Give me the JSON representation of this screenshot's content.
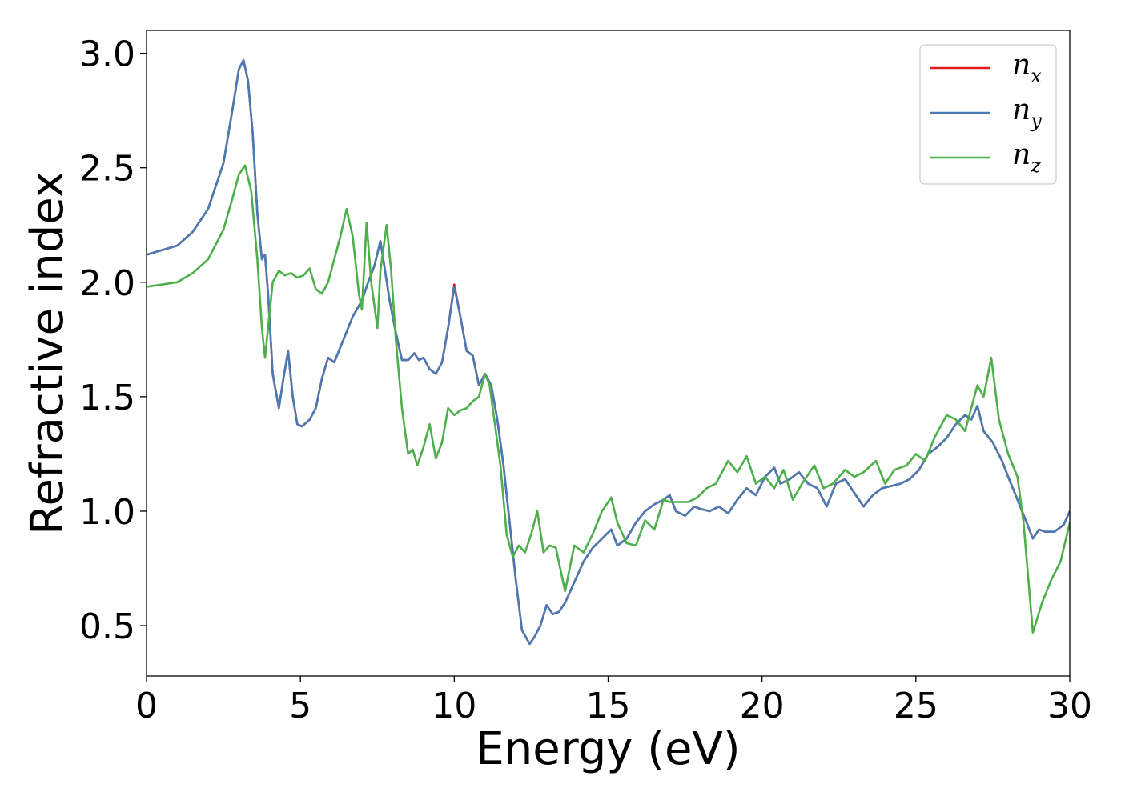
{
  "chart_data": {
    "type": "line",
    "xlabel": "Energy (eV)",
    "ylabel": "Refractive index",
    "xlim": [
      0,
      30
    ],
    "ylim": [
      0.28,
      3.1
    ],
    "xticks": [
      "0",
      "5",
      "10",
      "15",
      "20",
      "25",
      "30"
    ],
    "yticks": [
      "0.5",
      "1.0",
      "1.5",
      "2.0",
      "2.5",
      "3.0"
    ],
    "grid": false,
    "legend_position": "top-right",
    "series": [
      {
        "name": "n_x",
        "label_main": "n",
        "label_sub": "x",
        "color": "#e41a1c",
        "x": [
          0,
          1,
          1.5,
          2,
          2.5,
          2.8,
          3.0,
          3.15,
          3.3,
          3.45,
          3.6,
          3.75,
          3.85,
          3.95,
          4.1,
          4.3,
          4.45,
          4.6,
          4.75,
          4.9,
          5.05,
          5.3,
          5.5,
          5.7,
          5.9,
          6.1,
          6.4,
          6.7,
          7.0,
          7.2,
          7.4,
          7.6,
          7.75,
          7.9,
          8.1,
          8.3,
          8.5,
          8.7,
          8.85,
          9.0,
          9.2,
          9.4,
          9.6,
          9.8,
          10.0,
          10.2,
          10.4,
          10.6,
          10.8,
          11.0,
          11.2,
          11.4,
          11.6,
          11.8,
          12.0,
          12.2,
          12.45,
          12.6,
          12.8,
          13.0,
          13.2,
          13.4,
          13.6,
          13.8,
          14.0,
          14.2,
          14.5,
          14.8,
          15.1,
          15.3,
          15.6,
          15.9,
          16.2,
          16.5,
          16.8,
          17.0,
          17.2,
          17.5,
          17.8,
          18.0,
          18.3,
          18.6,
          18.9,
          19.2,
          19.5,
          19.8,
          20.1,
          20.4,
          20.6,
          20.9,
          21.2,
          21.5,
          21.8,
          22.1,
          22.4,
          22.7,
          23.0,
          23.3,
          23.6,
          23.9,
          24.2,
          24.5,
          24.8,
          25.1,
          25.4,
          25.7,
          26.0,
          26.3,
          26.6,
          26.8,
          27.0,
          27.2,
          27.5,
          27.8,
          28.0,
          28.3,
          28.6,
          28.8,
          29.0,
          29.2,
          29.5,
          29.8,
          30.0
        ],
        "y": [
          2.12,
          2.16,
          2.22,
          2.32,
          2.52,
          2.76,
          2.93,
          2.97,
          2.88,
          2.65,
          2.3,
          2.1,
          2.12,
          1.95,
          1.6,
          1.45,
          1.58,
          1.7,
          1.5,
          1.38,
          1.37,
          1.4,
          1.45,
          1.58,
          1.67,
          1.65,
          1.75,
          1.85,
          1.92,
          2.0,
          2.07,
          2.18,
          2.05,
          1.92,
          1.78,
          1.66,
          1.66,
          1.69,
          1.66,
          1.67,
          1.62,
          1.6,
          1.65,
          1.8,
          1.99,
          1.85,
          1.7,
          1.68,
          1.55,
          1.6,
          1.55,
          1.4,
          1.2,
          0.95,
          0.7,
          0.48,
          0.42,
          0.45,
          0.5,
          0.59,
          0.55,
          0.56,
          0.6,
          0.66,
          0.72,
          0.78,
          0.84,
          0.88,
          0.92,
          0.85,
          0.88,
          0.95,
          1.0,
          1.03,
          1.05,
          1.07,
          1.0,
          0.98,
          1.02,
          1.01,
          1.0,
          1.02,
          0.99,
          1.05,
          1.1,
          1.07,
          1.15,
          1.19,
          1.12,
          1.14,
          1.17,
          1.12,
          1.1,
          1.02,
          1.12,
          1.14,
          1.08,
          1.02,
          1.07,
          1.1,
          1.11,
          1.12,
          1.14,
          1.18,
          1.25,
          1.28,
          1.32,
          1.38,
          1.42,
          1.4,
          1.46,
          1.35,
          1.3,
          1.22,
          1.15,
          1.05,
          0.95,
          0.88,
          0.92,
          0.91,
          0.91,
          0.94,
          1.0
        ]
      },
      {
        "name": "n_y",
        "label_main": "n",
        "label_sub": "y",
        "color": "#4a7ab4",
        "x": [
          0,
          1,
          1.5,
          2,
          2.5,
          2.8,
          3.0,
          3.15,
          3.3,
          3.45,
          3.6,
          3.75,
          3.85,
          3.95,
          4.1,
          4.3,
          4.45,
          4.6,
          4.75,
          4.9,
          5.05,
          5.3,
          5.5,
          5.7,
          5.9,
          6.1,
          6.4,
          6.7,
          7.0,
          7.2,
          7.4,
          7.6,
          7.75,
          7.9,
          8.1,
          8.3,
          8.5,
          8.7,
          8.85,
          9.0,
          9.2,
          9.4,
          9.6,
          9.8,
          10.0,
          10.2,
          10.4,
          10.6,
          10.8,
          11.0,
          11.2,
          11.4,
          11.6,
          11.8,
          12.0,
          12.2,
          12.45,
          12.6,
          12.8,
          13.0,
          13.2,
          13.4,
          13.6,
          13.8,
          14.0,
          14.2,
          14.5,
          14.8,
          15.1,
          15.3,
          15.6,
          15.9,
          16.2,
          16.5,
          16.8,
          17.0,
          17.2,
          17.5,
          17.8,
          18.0,
          18.3,
          18.6,
          18.9,
          19.2,
          19.5,
          19.8,
          20.1,
          20.4,
          20.6,
          20.9,
          21.2,
          21.5,
          21.8,
          22.1,
          22.4,
          22.7,
          23.0,
          23.3,
          23.6,
          23.9,
          24.2,
          24.5,
          24.8,
          25.1,
          25.4,
          25.7,
          26.0,
          26.3,
          26.6,
          26.8,
          27.0,
          27.2,
          27.5,
          27.8,
          28.0,
          28.3,
          28.6,
          28.8,
          29.0,
          29.2,
          29.5,
          29.8,
          30.0
        ],
        "y": [
          2.12,
          2.16,
          2.22,
          2.32,
          2.52,
          2.76,
          2.93,
          2.97,
          2.88,
          2.65,
          2.3,
          2.1,
          2.12,
          1.95,
          1.6,
          1.45,
          1.58,
          1.7,
          1.5,
          1.38,
          1.37,
          1.4,
          1.45,
          1.58,
          1.67,
          1.65,
          1.75,
          1.85,
          1.92,
          2.0,
          2.07,
          2.18,
          2.05,
          1.92,
          1.78,
          1.66,
          1.66,
          1.69,
          1.66,
          1.67,
          1.62,
          1.6,
          1.65,
          1.8,
          1.98,
          1.85,
          1.7,
          1.68,
          1.55,
          1.6,
          1.55,
          1.4,
          1.2,
          0.95,
          0.7,
          0.48,
          0.42,
          0.45,
          0.5,
          0.59,
          0.55,
          0.56,
          0.6,
          0.66,
          0.72,
          0.78,
          0.84,
          0.88,
          0.92,
          0.85,
          0.88,
          0.95,
          1.0,
          1.03,
          1.05,
          1.07,
          1.0,
          0.98,
          1.02,
          1.01,
          1.0,
          1.02,
          0.99,
          1.05,
          1.1,
          1.07,
          1.15,
          1.19,
          1.12,
          1.14,
          1.17,
          1.12,
          1.1,
          1.02,
          1.12,
          1.14,
          1.08,
          1.02,
          1.07,
          1.1,
          1.11,
          1.12,
          1.14,
          1.18,
          1.25,
          1.28,
          1.32,
          1.38,
          1.42,
          1.4,
          1.46,
          1.35,
          1.3,
          1.22,
          1.15,
          1.05,
          0.95,
          0.88,
          0.92,
          0.91,
          0.91,
          0.94,
          1.0
        ]
      },
      {
        "name": "n_z",
        "label_main": "n",
        "label_sub": "z",
        "color": "#4daf4a",
        "x": [
          0,
          1,
          1.5,
          2,
          2.5,
          2.8,
          3.0,
          3.2,
          3.4,
          3.6,
          3.75,
          3.85,
          3.95,
          4.1,
          4.3,
          4.5,
          4.7,
          4.9,
          5.1,
          5.3,
          5.5,
          5.7,
          5.9,
          6.1,
          6.3,
          6.5,
          6.7,
          6.9,
          7.0,
          7.15,
          7.3,
          7.5,
          7.6,
          7.8,
          7.95,
          8.1,
          8.3,
          8.5,
          8.65,
          8.8,
          9.0,
          9.2,
          9.4,
          9.6,
          9.8,
          10.0,
          10.2,
          10.4,
          10.6,
          10.8,
          11.0,
          11.15,
          11.3,
          11.5,
          11.7,
          11.9,
          12.1,
          12.3,
          12.5,
          12.7,
          12.9,
          13.1,
          13.3,
          13.6,
          13.9,
          14.2,
          14.5,
          14.8,
          15.1,
          15.3,
          15.6,
          15.9,
          16.2,
          16.5,
          16.8,
          17.0,
          17.3,
          17.6,
          17.9,
          18.2,
          18.5,
          18.9,
          19.2,
          19.5,
          19.8,
          20.1,
          20.4,
          20.7,
          21.0,
          21.3,
          21.7,
          22.0,
          22.3,
          22.7,
          23.0,
          23.3,
          23.7,
          24.0,
          24.3,
          24.7,
          25.0,
          25.3,
          25.6,
          26.0,
          26.3,
          26.6,
          26.8,
          27.0,
          27.2,
          27.45,
          27.7,
          28.0,
          28.3,
          28.5,
          28.8,
          29.1,
          29.4,
          29.7,
          30.0
        ],
        "y": [
          1.98,
          2.0,
          2.04,
          2.1,
          2.23,
          2.37,
          2.47,
          2.51,
          2.4,
          2.1,
          1.8,
          1.67,
          1.8,
          2.0,
          2.05,
          2.03,
          2.04,
          2.02,
          2.03,
          2.06,
          1.97,
          1.95,
          2.0,
          2.1,
          2.2,
          2.32,
          2.2,
          1.95,
          1.88,
          2.26,
          2.0,
          1.8,
          2.05,
          2.25,
          2.05,
          1.75,
          1.45,
          1.25,
          1.27,
          1.2,
          1.28,
          1.38,
          1.23,
          1.3,
          1.45,
          1.42,
          1.44,
          1.45,
          1.48,
          1.5,
          1.6,
          1.55,
          1.4,
          1.2,
          0.9,
          0.8,
          0.85,
          0.82,
          0.9,
          1.0,
          0.82,
          0.85,
          0.84,
          0.65,
          0.85,
          0.82,
          0.9,
          1.0,
          1.06,
          0.95,
          0.86,
          0.85,
          0.96,
          0.92,
          1.05,
          1.04,
          1.04,
          1.04,
          1.06,
          1.1,
          1.12,
          1.22,
          1.17,
          1.24,
          1.12,
          1.15,
          1.1,
          1.18,
          1.05,
          1.12,
          1.2,
          1.1,
          1.12,
          1.18,
          1.15,
          1.17,
          1.22,
          1.12,
          1.18,
          1.2,
          1.25,
          1.22,
          1.32,
          1.42,
          1.4,
          1.35,
          1.45,
          1.55,
          1.5,
          1.67,
          1.4,
          1.25,
          1.15,
          0.95,
          0.47,
          0.6,
          0.7,
          0.78,
          0.95
        ]
      }
    ]
  }
}
